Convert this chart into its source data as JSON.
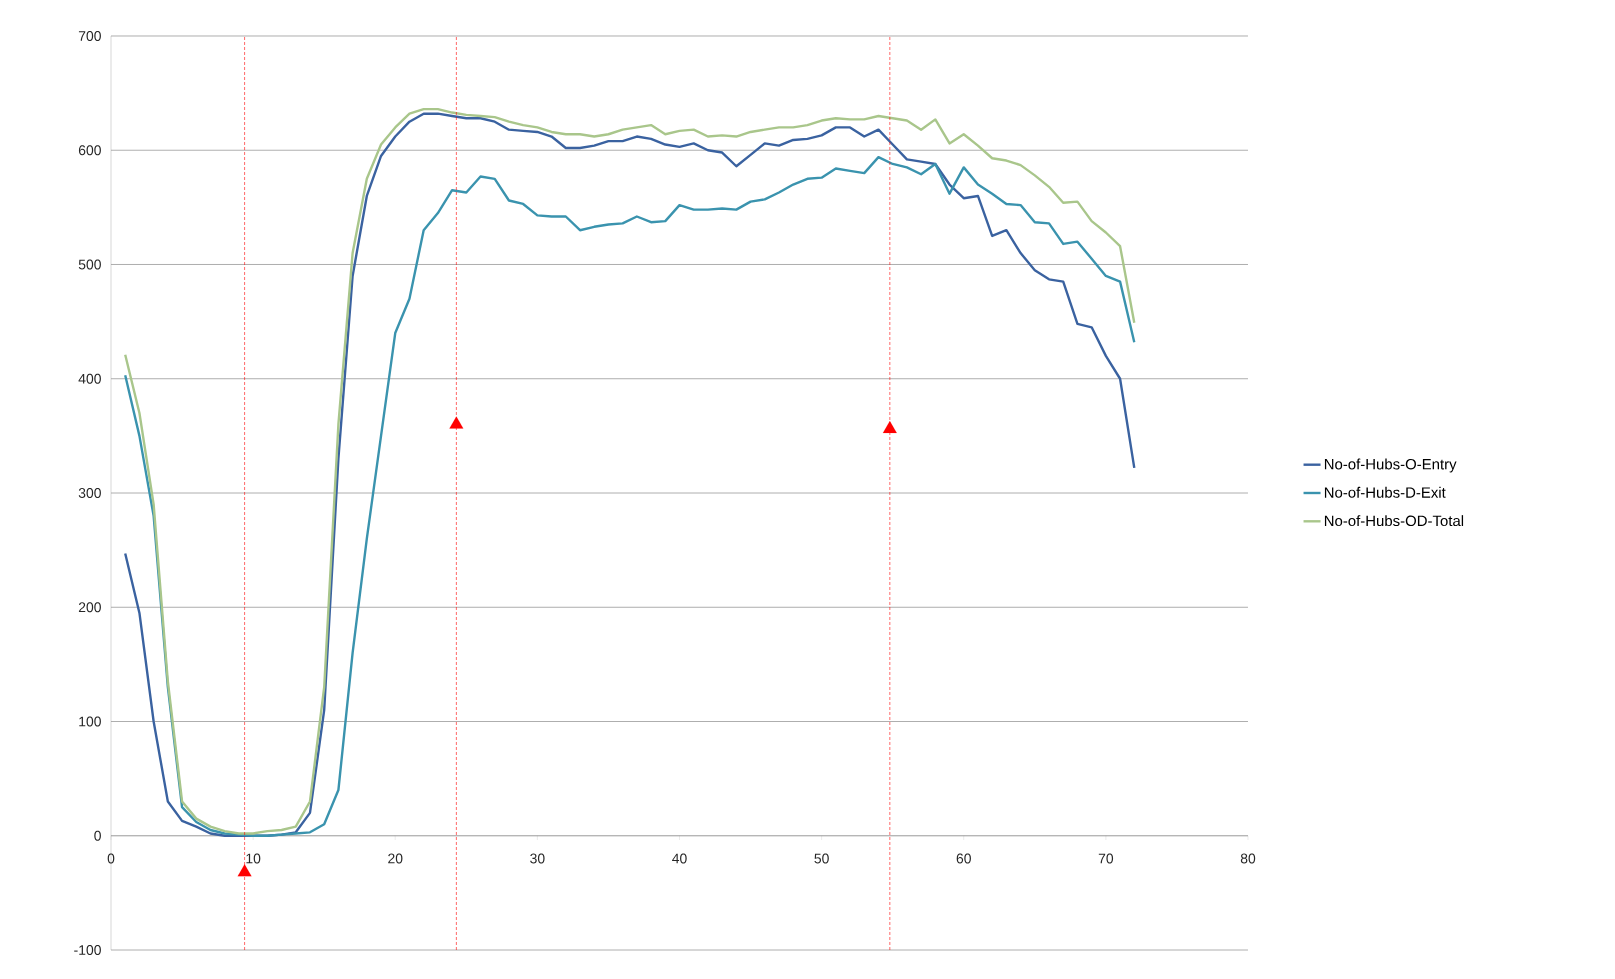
{
  "chart_data": {
    "type": "line",
    "x": [
      1,
      2,
      3,
      4,
      5,
      6,
      7,
      8,
      9,
      10,
      11,
      12,
      13,
      14,
      15,
      16,
      17,
      18,
      19,
      20,
      21,
      22,
      23,
      24,
      25,
      26,
      27,
      28,
      29,
      30,
      31,
      32,
      33,
      34,
      35,
      36,
      37,
      38,
      39,
      40,
      41,
      42,
      43,
      44,
      45,
      46,
      47,
      48,
      49,
      50,
      51,
      52,
      53,
      54,
      55,
      56,
      57,
      58,
      59,
      60,
      61,
      62,
      63,
      64,
      65,
      66,
      67,
      68,
      69,
      70,
      71,
      72
    ],
    "series": [
      {
        "name": "No-of-Hubs-O-Entry",
        "color": "#3a62a0",
        "values": [
          247,
          195,
          100,
          30,
          13,
          8,
          2,
          0,
          0,
          0,
          0,
          1,
          3,
          20,
          110,
          330,
          490,
          560,
          595,
          612,
          625,
          632,
          632,
          630,
          628,
          628,
          625,
          618,
          617,
          616,
          612,
          602,
          602,
          604,
          608,
          608,
          612,
          610,
          605,
          603,
          606,
          600,
          598,
          586,
          596,
          606,
          604,
          609,
          610,
          613,
          620,
          620,
          612,
          618,
          605,
          592,
          590,
          588,
          570,
          558,
          560,
          525,
          530,
          510,
          495,
          487,
          485,
          448,
          445,
          420,
          400,
          322
        ]
      },
      {
        "name": "No-of-Hubs-D-Exit",
        "color": "#3a93ae",
        "values": [
          403,
          350,
          280,
          130,
          25,
          12,
          5,
          2,
          1,
          0,
          0,
          1,
          2,
          3,
          10,
          40,
          160,
          260,
          350,
          440,
          470,
          530,
          545,
          565,
          563,
          577,
          575,
          556,
          553,
          543,
          542,
          542,
          530,
          533,
          535,
          536,
          542,
          537,
          538,
          552,
          548,
          548,
          549,
          548,
          555,
          557,
          563,
          570,
          575,
          576,
          584,
          582,
          580,
          594,
          588,
          585,
          579,
          588,
          562,
          585,
          570,
          562,
          553,
          552,
          537,
          536,
          518,
          520,
          505,
          490,
          485,
          432
        ]
      },
      {
        "name": "No-of-Hubs-OD-Total",
        "color": "#a9c68b",
        "values": [
          421,
          370,
          290,
          135,
          30,
          15,
          8,
          4,
          2,
          2,
          4,
          5,
          8,
          30,
          130,
          360,
          510,
          575,
          605,
          620,
          632,
          636,
          636,
          633,
          631,
          630,
          629,
          625,
          622,
          620,
          616,
          614,
          614,
          612,
          614,
          618,
          620,
          622,
          614,
          617,
          618,
          612,
          613,
          612,
          616,
          618,
          620,
          620,
          622,
          626,
          628,
          627,
          627,
          630,
          628,
          626,
          618,
          627,
          606,
          614,
          604,
          593,
          591,
          587,
          578,
          568,
          554,
          555,
          538,
          528,
          516,
          449
        ]
      },
      {
        "type": "scatter",
        "color": "#ff0000",
        "marker": "triangle",
        "x": [
          9.4,
          24.3,
          54.8
        ],
        "values": [
          -32,
          360,
          356
        ]
      }
    ],
    "xlim": [
      0,
      80
    ],
    "xticks": [
      0,
      10,
      20,
      30,
      40,
      50,
      60,
      70,
      80
    ],
    "ylim": [
      -100,
      700
    ],
    "yticks": [
      -100,
      0,
      100,
      200,
      300,
      400,
      500,
      600,
      700
    ],
    "grid": "y",
    "legend": "right",
    "marker": "none",
    "line_style": "solid",
    "ref_lines": [
      {
        "axis": "x",
        "value": 9.4,
        "color": "#ff0000",
        "line_style": "dashed"
      },
      {
        "axis": "x",
        "value": 24.3,
        "color": "#ff0000",
        "line_style": "dashed"
      },
      {
        "axis": "x",
        "value": 54.8,
        "color": "#ff0000",
        "line_style": "dashed"
      }
    ]
  }
}
